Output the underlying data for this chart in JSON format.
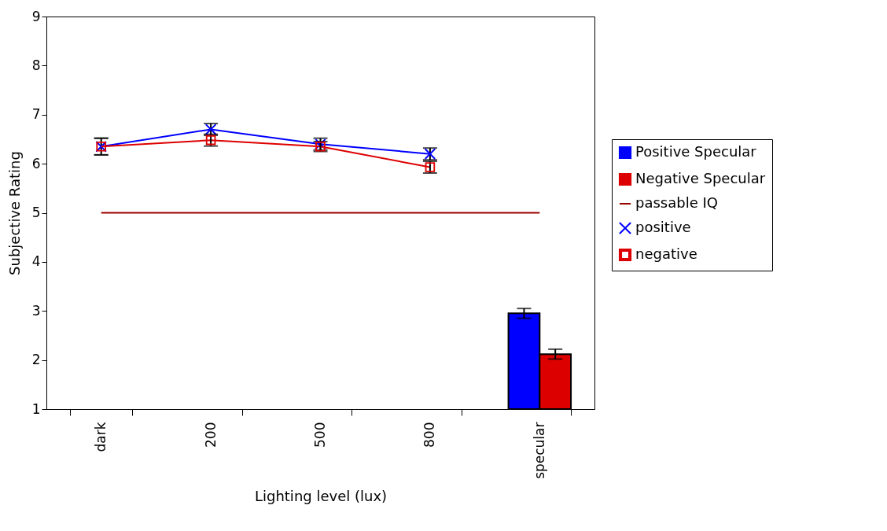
{
  "chart_data": {
    "type": "line",
    "xlabel": "Lighting level (lux)",
    "ylabel": "Subjective Rating",
    "categories": [
      "dark",
      "200",
      "500",
      "800",
      "specular"
    ],
    "ylim": [
      1,
      9
    ],
    "yticks": [
      1,
      2,
      3,
      4,
      5,
      6,
      7,
      8,
      9
    ],
    "legend": "right",
    "grid": false,
    "series": [
      {
        "name": "Positive Specular",
        "type": "bar",
        "color": "#0000ff",
        "values": [
          null,
          null,
          null,
          null,
          2.95
        ],
        "errors": [
          null,
          null,
          null,
          null,
          0.1
        ]
      },
      {
        "name": "Negative Specular",
        "type": "bar",
        "color": "#dd0000",
        "values": [
          null,
          null,
          null,
          null,
          2.12
        ],
        "errors": [
          null,
          null,
          null,
          null,
          0.1
        ]
      },
      {
        "name": "passable IQ",
        "color": "#990000",
        "values": [
          5,
          5,
          5,
          5,
          5
        ],
        "marker": "none"
      },
      {
        "name": "positive",
        "color": "#0000ff",
        "values": [
          6.35,
          6.7,
          6.4,
          6.2,
          null
        ],
        "errors": [
          0.17,
          0.12,
          0.12,
          0.12,
          null
        ],
        "marker": "cross"
      },
      {
        "name": "negative",
        "color": "#dd0000",
        "values": [
          6.35,
          6.48,
          6.35,
          5.93,
          null
        ],
        "errors": [
          0.17,
          0.12,
          0.1,
          0.12,
          null
        ],
        "marker": "square"
      }
    ]
  }
}
